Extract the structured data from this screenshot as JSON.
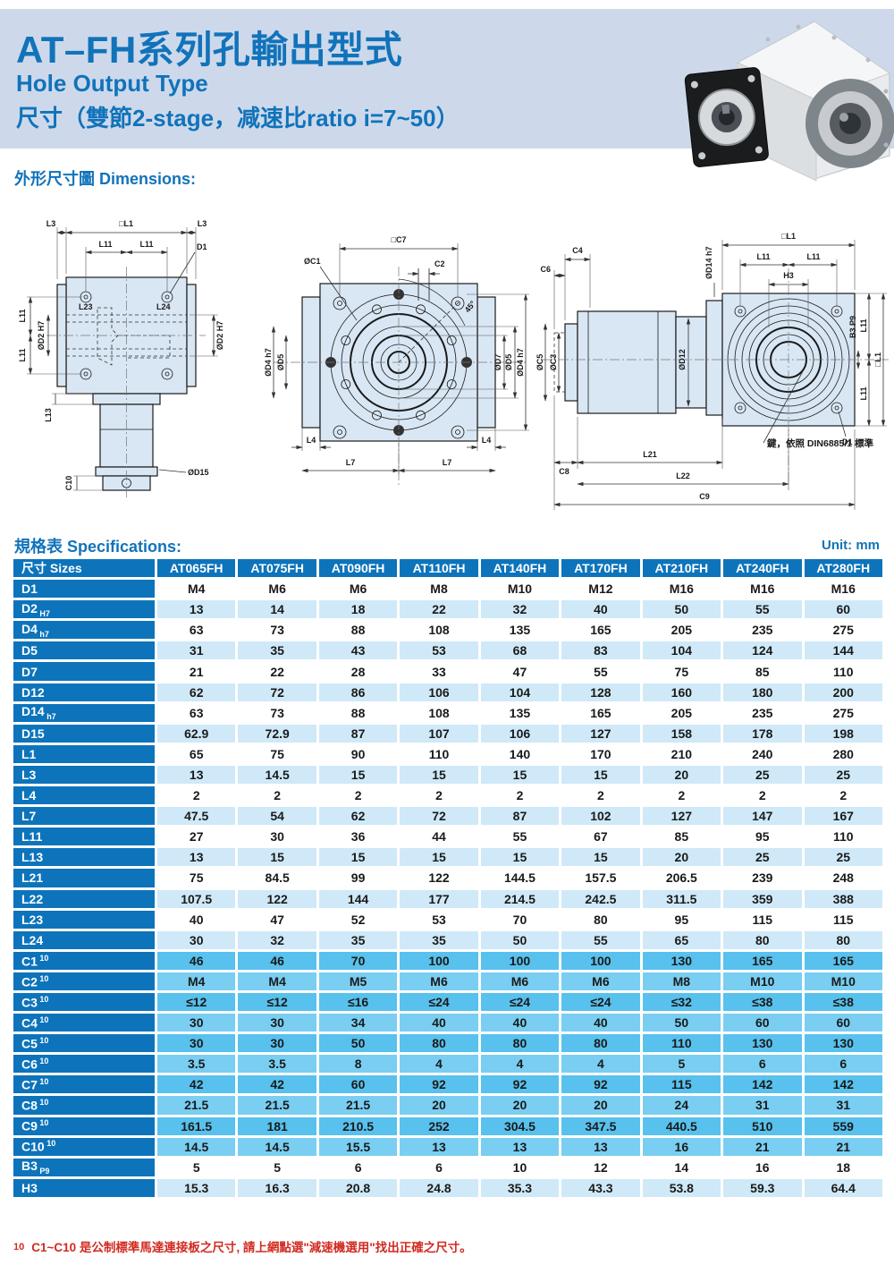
{
  "page": {
    "title": "AT–FH系列孔輸出型式",
    "subtitle_en": "Hole Output Type",
    "subtitle_spec": "尺寸（雙節2-stage，减速比ratio i=7~50）",
    "dimensions_label": "外形尺寸圖 Dimensions:",
    "spec_label": "規格表 Specifications:",
    "unit_label": "Unit: mm",
    "footnote_marker": "10",
    "footnote": "C1~C10 是公制標準馬達連接板之尺寸,  請上網點選\"減速機選用\"找出正確之尺寸。"
  },
  "colors": {
    "banner_bg": "#cdd9eb",
    "title_blue": "#1173ba",
    "table_header_bg": "#0d74bb",
    "row_light_blue": "#cfe9f8",
    "row_mid_blue_dark": "#58c1ed",
    "row_mid_blue_light": "#79cef2",
    "footnote_red": "#d12b21",
    "drawing_fill": "#d9e7f4"
  },
  "dims": {
    "L1sq": "□L1",
    "L3": "L3",
    "L11": "L11",
    "D1": "D1",
    "L23": "L23",
    "L24": "L24",
    "D2h7": "ØD2 H7",
    "L13": "L13",
    "C10": "C10",
    "D15": "ØD15",
    "C7sq": "□C7",
    "C1": "ØC1",
    "C2": "C2",
    "deg45": "45°",
    "D7": "ØD7",
    "D5": "ØD5",
    "D4h7": "ØD4 h7",
    "L4": "L4",
    "L7": "L7",
    "C4": "C4",
    "C6": "C6",
    "C5": "ØC5",
    "C3": "ØC3",
    "D12": "ØD12",
    "D14h7": "ØD14 h7",
    "H3": "H3",
    "B3p9": "B3 P9",
    "C8": "C8",
    "L21": "L21",
    "L22": "L22",
    "C9": "C9",
    "key_note": "鍵，依照 DIN6885/1 標準"
  },
  "table": {
    "header": [
      "尺寸 Sizes",
      "AT065FH",
      "AT075FH",
      "AT090FH",
      "AT110FH",
      "AT140FH",
      "AT170FH",
      "AT210FH",
      "AT240FH",
      "AT280FH"
    ],
    "rows": [
      {
        "label": "D1",
        "values": [
          "M4",
          "M6",
          "M6",
          "M8",
          "M10",
          "M12",
          "M16",
          "M16",
          "M16"
        ],
        "band": "w"
      },
      {
        "label": "D2",
        "sub": "H7",
        "values": [
          "13",
          "14",
          "18",
          "22",
          "32",
          "40",
          "50",
          "55",
          "60"
        ],
        "band": "lb"
      },
      {
        "label": "D4",
        "sub": "h7",
        "values": [
          "63",
          "73",
          "88",
          "108",
          "135",
          "165",
          "205",
          "235",
          "275"
        ],
        "band": "w"
      },
      {
        "label": "D5",
        "values": [
          "31",
          "35",
          "43",
          "53",
          "68",
          "83",
          "104",
          "124",
          "144"
        ],
        "band": "lb"
      },
      {
        "label": "D7",
        "values": [
          "21",
          "22",
          "28",
          "33",
          "47",
          "55",
          "75",
          "85",
          "110"
        ],
        "band": "w"
      },
      {
        "label": "D12",
        "values": [
          "62",
          "72",
          "86",
          "106",
          "104",
          "128",
          "160",
          "180",
          "200"
        ],
        "band": "lb"
      },
      {
        "label": "D14",
        "sub": "h7",
        "values": [
          "63",
          "73",
          "88",
          "108",
          "135",
          "165",
          "205",
          "235",
          "275"
        ],
        "band": "w"
      },
      {
        "label": "D15",
        "values": [
          "62.9",
          "72.9",
          "87",
          "107",
          "106",
          "127",
          "158",
          "178",
          "198"
        ],
        "band": "lb"
      },
      {
        "label": "L1",
        "values": [
          "65",
          "75",
          "90",
          "110",
          "140",
          "170",
          "210",
          "240",
          "280"
        ],
        "band": "w"
      },
      {
        "label": "L3",
        "values": [
          "13",
          "14.5",
          "15",
          "15",
          "15",
          "15",
          "20",
          "25",
          "25"
        ],
        "band": "lb"
      },
      {
        "label": "L4",
        "values": [
          "2",
          "2",
          "2",
          "2",
          "2",
          "2",
          "2",
          "2",
          "2"
        ],
        "band": "w"
      },
      {
        "label": "L7",
        "values": [
          "47.5",
          "54",
          "62",
          "72",
          "87",
          "102",
          "127",
          "147",
          "167"
        ],
        "band": "lb"
      },
      {
        "label": "L11",
        "values": [
          "27",
          "30",
          "36",
          "44",
          "55",
          "67",
          "85",
          "95",
          "110"
        ],
        "band": "w"
      },
      {
        "label": "L13",
        "values": [
          "13",
          "15",
          "15",
          "15",
          "15",
          "15",
          "20",
          "25",
          "25"
        ],
        "band": "lb"
      },
      {
        "label": "L21",
        "values": [
          "75",
          "84.5",
          "99",
          "122",
          "144.5",
          "157.5",
          "206.5",
          "239",
          "248"
        ],
        "band": "w"
      },
      {
        "label": "L22",
        "values": [
          "107.5",
          "122",
          "144",
          "177",
          "214.5",
          "242.5",
          "311.5",
          "359",
          "388"
        ],
        "band": "lb"
      },
      {
        "label": "L23",
        "values": [
          "40",
          "47",
          "52",
          "53",
          "70",
          "80",
          "95",
          "115",
          "115"
        ],
        "band": "w"
      },
      {
        "label": "L24",
        "values": [
          "30",
          "32",
          "35",
          "35",
          "50",
          "55",
          "65",
          "80",
          "80"
        ],
        "band": "lb"
      },
      {
        "label": "C1",
        "sup": "10",
        "values": [
          "46",
          "46",
          "70",
          "100",
          "100",
          "100",
          "130",
          "165",
          "165"
        ],
        "band": "m1"
      },
      {
        "label": "C2",
        "sup": "10",
        "values": [
          "M4",
          "M4",
          "M5",
          "M6",
          "M6",
          "M6",
          "M8",
          "M10",
          "M10"
        ],
        "band": "m2"
      },
      {
        "label": "C3",
        "sup": "10",
        "values": [
          "≤12",
          "≤12",
          "≤16",
          "≤24",
          "≤24",
          "≤24",
          "≤32",
          "≤38",
          "≤38"
        ],
        "band": "m1"
      },
      {
        "label": "C4",
        "sup": "10",
        "values": [
          "30",
          "30",
          "34",
          "40",
          "40",
          "40",
          "50",
          "60",
          "60"
        ],
        "band": "m2"
      },
      {
        "label": "C5",
        "sup": "10",
        "values": [
          "30",
          "30",
          "50",
          "80",
          "80",
          "80",
          "110",
          "130",
          "130"
        ],
        "band": "m1"
      },
      {
        "label": "C6",
        "sup": "10",
        "values": [
          "3.5",
          "3.5",
          "8",
          "4",
          "4",
          "4",
          "5",
          "6",
          "6"
        ],
        "band": "m2"
      },
      {
        "label": "C7",
        "sup": "10",
        "values": [
          "42",
          "42",
          "60",
          "92",
          "92",
          "92",
          "115",
          "142",
          "142"
        ],
        "band": "m1"
      },
      {
        "label": "C8",
        "sup": "10",
        "values": [
          "21.5",
          "21.5",
          "21.5",
          "20",
          "20",
          "20",
          "24",
          "31",
          "31"
        ],
        "band": "m2"
      },
      {
        "label": "C9",
        "sup": "10",
        "values": [
          "161.5",
          "181",
          "210.5",
          "252",
          "304.5",
          "347.5",
          "440.5",
          "510",
          "559"
        ],
        "band": "m1"
      },
      {
        "label": "C10",
        "sup": "10",
        "values": [
          "14.5",
          "14.5",
          "15.5",
          "13",
          "13",
          "13",
          "16",
          "21",
          "21"
        ],
        "band": "m2"
      },
      {
        "label": "B3",
        "sub": "P9",
        "values": [
          "5",
          "5",
          "6",
          "6",
          "10",
          "12",
          "14",
          "16",
          "18"
        ],
        "band": "w"
      },
      {
        "label": "H3",
        "values": [
          "15.3",
          "16.3",
          "20.8",
          "24.8",
          "35.3",
          "43.3",
          "53.8",
          "59.3",
          "64.4"
        ],
        "band": "lb"
      }
    ]
  }
}
